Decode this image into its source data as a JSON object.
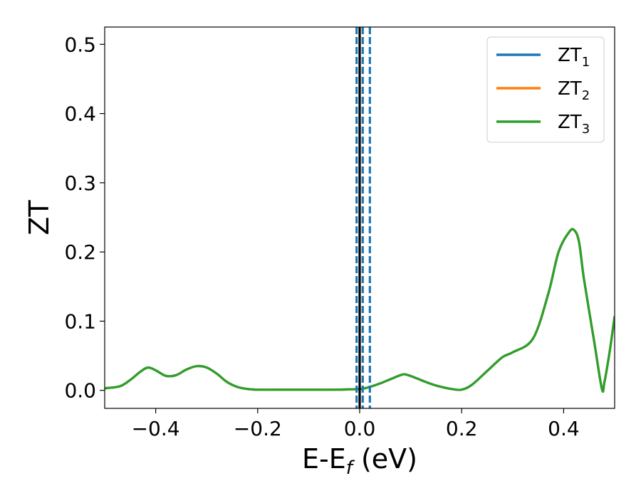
{
  "chart_data": {
    "type": "line",
    "xlabel": "E-E",
    "xlabel_sub": "f",
    "xlabel_unit": " (eV)",
    "ylabel": "ZT",
    "xlim": [
      -0.5,
      0.5
    ],
    "ylim": [
      -0.026,
      0.525
    ],
    "xticks": [
      -0.4,
      -0.2,
      0.0,
      0.2,
      0.4
    ],
    "xtick_labels": [
      "−0.4",
      "−0.2",
      "0.0",
      "0.2",
      "0.4"
    ],
    "yticks": [
      0.0,
      0.1,
      0.2,
      0.3,
      0.4,
      0.5
    ],
    "ytick_labels": [
      "0.0",
      "0.1",
      "0.2",
      "0.3",
      "0.4",
      "0.5"
    ],
    "grid": false,
    "legend_position": "top-right",
    "x": [
      -0.5,
      -0.47,
      -0.45,
      -0.43,
      -0.415,
      -0.4,
      -0.38,
      -0.36,
      -0.34,
      -0.32,
      -0.3,
      -0.28,
      -0.26,
      -0.24,
      -0.22,
      -0.2,
      -0.15,
      -0.1,
      -0.05,
      0.0,
      0.02,
      0.04,
      0.06,
      0.08,
      0.09,
      0.11,
      0.13,
      0.15,
      0.18,
      0.2,
      0.22,
      0.25,
      0.28,
      0.3,
      0.34,
      0.37,
      0.39,
      0.41,
      0.42,
      0.43,
      0.44,
      0.46,
      0.475,
      0.48,
      0.49,
      0.5
    ],
    "series": [
      {
        "name": "ZT",
        "sub": "1",
        "color": "#1f77b4",
        "y": [
          0.003,
          0.006,
          0.015,
          0.027,
          0.033,
          0.029,
          0.021,
          0.022,
          0.03,
          0.035,
          0.033,
          0.024,
          0.012,
          0.005,
          0.002,
          0.001,
          0.001,
          0.001,
          0.001,
          0.002,
          0.005,
          0.01,
          0.016,
          0.022,
          0.023,
          0.018,
          0.012,
          0.007,
          0.002,
          0.001,
          0.008,
          0.028,
          0.048,
          0.055,
          0.075,
          0.14,
          0.2,
          0.228,
          0.232,
          0.215,
          0.16,
          0.07,
          0.002,
          0.012,
          0.055,
          0.107
        ]
      },
      {
        "name": "ZT",
        "sub": "2",
        "color": "#ff7f0e",
        "y": [
          0.003,
          0.006,
          0.015,
          0.027,
          0.033,
          0.029,
          0.021,
          0.022,
          0.03,
          0.035,
          0.033,
          0.024,
          0.012,
          0.005,
          0.002,
          0.001,
          0.001,
          0.001,
          0.001,
          0.002,
          0.005,
          0.01,
          0.016,
          0.022,
          0.023,
          0.018,
          0.012,
          0.007,
          0.002,
          0.001,
          0.008,
          0.028,
          0.048,
          0.055,
          0.075,
          0.14,
          0.2,
          0.228,
          0.232,
          0.215,
          0.16,
          0.07,
          0.002,
          0.012,
          0.055,
          0.107
        ]
      },
      {
        "name": "ZT",
        "sub": "3",
        "color": "#2ca02c",
        "y": [
          0.003,
          0.006,
          0.015,
          0.027,
          0.033,
          0.029,
          0.021,
          0.022,
          0.03,
          0.035,
          0.033,
          0.024,
          0.012,
          0.005,
          0.002,
          0.001,
          0.001,
          0.001,
          0.001,
          0.002,
          0.005,
          0.01,
          0.016,
          0.022,
          0.023,
          0.018,
          0.012,
          0.007,
          0.002,
          0.001,
          0.008,
          0.028,
          0.048,
          0.055,
          0.075,
          0.14,
          0.2,
          0.228,
          0.232,
          0.215,
          0.16,
          0.07,
          0.002,
          0.012,
          0.055,
          0.107
        ]
      }
    ],
    "vlines": [
      {
        "x": 0.0,
        "color": "#000000",
        "style": "solid"
      },
      {
        "x": -0.006,
        "color": "#1f77b4",
        "style": "dashed"
      },
      {
        "x": 0.006,
        "color": "#1f77b4",
        "style": "dashed"
      },
      {
        "x": 0.02,
        "color": "#1f77b4",
        "style": "dashed"
      }
    ]
  }
}
